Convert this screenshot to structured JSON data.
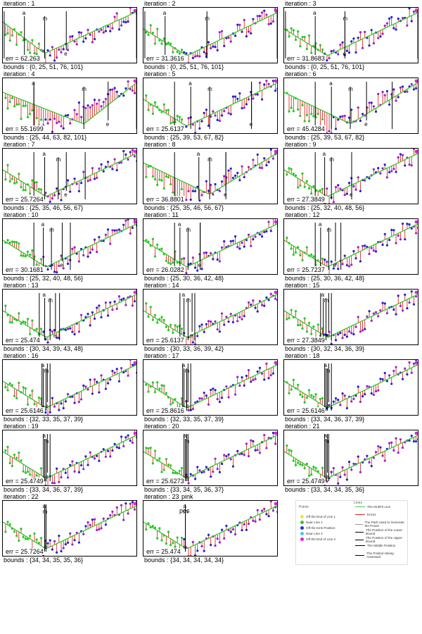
{
  "chart_data": {
    "type": "scatter",
    "panels": [
      {
        "iteration": "iteration : 1",
        "err": "err = 62.263",
        "bounds": "bounds : {0, 25, 51, 76, 101}"
      },
      {
        "iteration": "iteration : 2",
        "err": "err = 31.3616",
        "bounds": "bounds : {0, 25, 51, 76, 101}"
      },
      {
        "iteration": "iteration : 3",
        "err": "err = 31.8683",
        "bounds": "bounds : {0, 25, 51, 76, 101}"
      },
      {
        "iteration": "iteration : 4",
        "err": "err = 55.1699",
        "bounds": "bounds : {25, 44, 63, 82, 101}"
      },
      {
        "iteration": "iteration : 5",
        "err": "err = 25.6137",
        "bounds": "bounds : {25, 39, 53, 67, 82}"
      },
      {
        "iteration": "iteration : 6",
        "err": "err = 45.4284",
        "bounds": "bounds : {25, 39, 53, 67, 82}"
      },
      {
        "iteration": "iteration : 7",
        "err": "err = 25.7264",
        "bounds": "bounds : {25, 35, 46, 56, 67}"
      },
      {
        "iteration": "iteration : 8",
        "err": "err = 36.8801",
        "bounds": "bounds : {25, 35, 46, 56, 67}"
      },
      {
        "iteration": "iteration : 9",
        "err": "err = 27.3849",
        "bounds": "bounds : {25, 32, 40, 48, 56}"
      },
      {
        "iteration": "iteration : 10",
        "err": "err = 30.1681",
        "bounds": "bounds : {25, 32, 40, 48, 56}"
      },
      {
        "iteration": "iteration : 11",
        "err": "err = 26.0282",
        "bounds": "bounds : {25, 30, 36, 42, 48}"
      },
      {
        "iteration": "iteration : 12",
        "err": "err = 25.7237",
        "bounds": "bounds : {25, 30, 36, 42, 48}"
      },
      {
        "iteration": "iteration : 13",
        "err": "err = 25.474",
        "bounds": "bounds : {30, 34, 39, 43, 48}"
      },
      {
        "iteration": "iteration : 14",
        "err": "err = 25.6137",
        "bounds": "bounds : {30, 33, 36, 39, 42}"
      },
      {
        "iteration": "iteration : 15",
        "err": "err = 27.3849",
        "bounds": "bounds : {30, 32, 34, 36, 39}"
      },
      {
        "iteration": "iteration : 16",
        "err": "err = 25.6146",
        "bounds": "bounds : {32, 33, 35, 37, 39}"
      },
      {
        "iteration": "iteration : 17",
        "err": "err = 25.8616",
        "bounds": "bounds : {32, 33, 35, 37, 39}"
      },
      {
        "iteration": "iteration : 18",
        "err": "err = 25.6146",
        "bounds": "bounds : {33, 34, 36, 37, 39}"
      },
      {
        "iteration": "iteration : 19",
        "err": "err = 25.4749",
        "bounds": "bounds : {33, 34, 36, 37, 39}"
      },
      {
        "iteration": "iteration : 20",
        "err": "err = 25.6273",
        "bounds": "bounds : {33, 34, 35, 36, 37}"
      },
      {
        "iteration": "iteration : 21",
        "err": "err = 25.4749",
        "bounds": "bounds : {33, 34, 34, 35, 36}"
      },
      {
        "iteration": "iteration : 22",
        "err": "err = 25.7264",
        "bounds": "bounds : {34, 34, 35, 35, 36}"
      },
      {
        "iteration": "iteration : 23",
        "err": "err = 25.474",
        "bounds": "bounds : {34, 34, 34, 34, 34}"
      }
    ],
    "marker_labels": {
      "a": "a",
      "m": "m",
      "e": "e",
      "pos": "pos",
      "pink": "pink"
    },
    "legend": {
      "points_title": "Points",
      "lines_title": "Lines",
      "points": [
        {
          "label": "Off the End of Line 1",
          "color": "#e8e840"
        },
        {
          "label": "Near Line 1",
          "color": "#40c040"
        },
        {
          "label": "Off the Kink Position",
          "color": "#3030d0"
        },
        {
          "label": "Near Line 2",
          "color": "#40d0d0"
        },
        {
          "label": "Off the End of Line 2",
          "color": "#e020e0"
        }
      ],
      "lines": [
        {
          "label": "The KinkFit Line",
          "color": "#40d040"
        },
        {
          "label": "Errors",
          "color": "#e02020"
        },
        {
          "label": "The Path Used to Generate the Points",
          "color": "#999999"
        },
        {
          "label": "The Position of the Lower Bound",
          "color": "#000000"
        },
        {
          "label": "The Position of the Upper Bound",
          "color": "#000000"
        },
        {
          "label": "The Middle Position",
          "color": "#000000"
        },
        {
          "label": "The Position Being Assessed",
          "color": "#000000"
        }
      ]
    },
    "colors": {
      "fit": "#22cc22",
      "error": "#dd1111",
      "point_blue": "#2222cc",
      "point_purple": "#9922cc",
      "point_magenta": "#dd22dd"
    }
  }
}
